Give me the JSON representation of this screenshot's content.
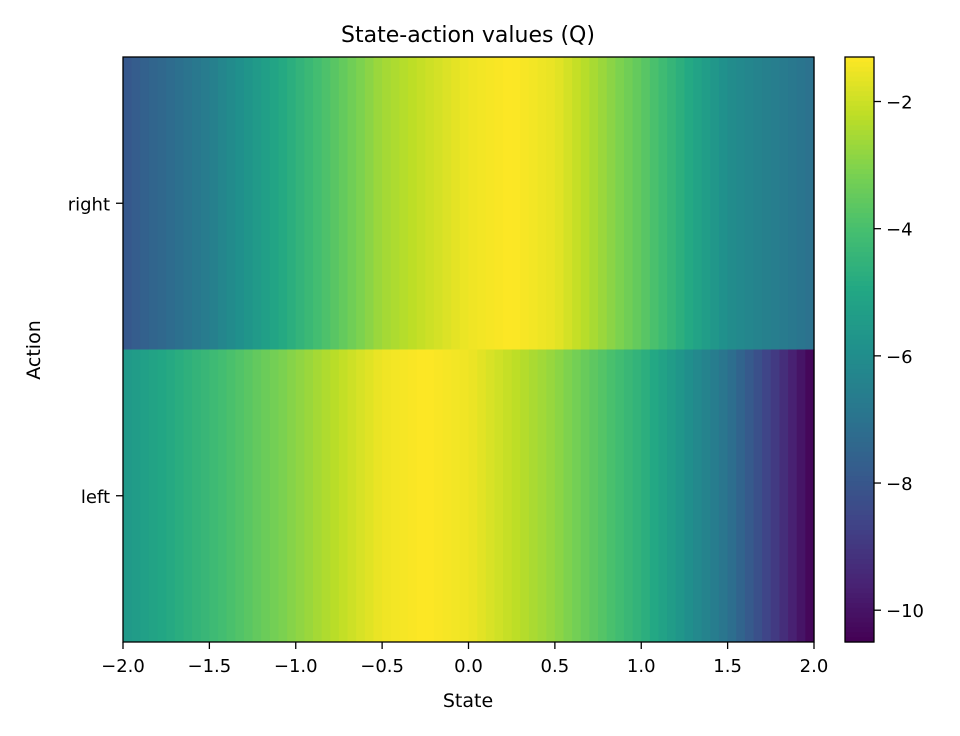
{
  "chart_data": {
    "type": "heatmap",
    "title": "State-action values (Q)",
    "xlabel": "State",
    "ylabel": "Action",
    "xlim": [
      -2.0,
      2.0
    ],
    "x_ticks": [
      -2.0,
      -1.5,
      -1.0,
      -0.5,
      0.0,
      0.5,
      1.0,
      1.5,
      2.0
    ],
    "x_tick_labels": [
      "−2.0",
      "−1.5",
      "−1.0",
      "−0.5",
      "0.0",
      "0.5",
      "1.0",
      "1.5",
      "2.0"
    ],
    "rows": [
      "right",
      "left"
    ],
    "colormap": "viridis",
    "value_range": [
      -10.5,
      -1.3
    ],
    "colorbar_ticks": [
      -2,
      -4,
      -6,
      -8,
      -10
    ],
    "colorbar_tick_labels": [
      "−2",
      "−4",
      "−6",
      "−8",
      "−10"
    ],
    "series": [
      {
        "name": "right",
        "x": [
          -2.0,
          -1.5,
          -1.0,
          -0.5,
          0.0,
          0.25,
          0.5,
          1.0,
          1.5,
          2.0
        ],
        "values": [
          -8.0,
          -6.6,
          -4.6,
          -2.6,
          -1.5,
          -1.3,
          -1.6,
          -3.6,
          -6.0,
          -7.1
        ]
      },
      {
        "name": "left",
        "x": [
          -2.0,
          -1.5,
          -1.0,
          -0.5,
          -0.25,
          0.0,
          0.5,
          1.0,
          1.5,
          2.0
        ],
        "values": [
          -5.6,
          -4.3,
          -2.9,
          -1.5,
          -1.3,
          -1.5,
          -2.8,
          -4.6,
          -7.0,
          -10.5
        ]
      }
    ]
  }
}
